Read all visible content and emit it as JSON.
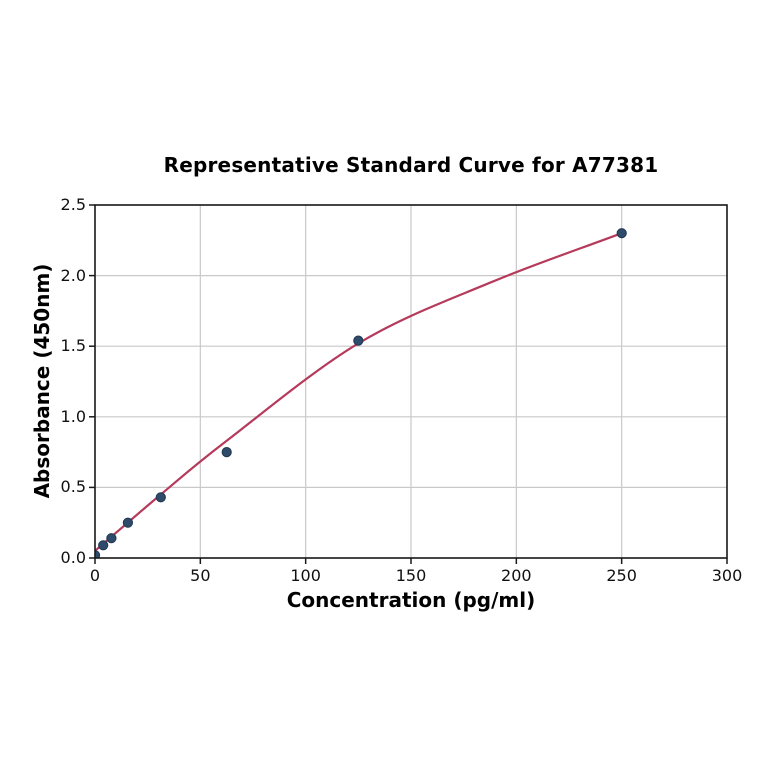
{
  "chart_data": {
    "type": "scatter",
    "title": "Representative Standard Curve for A77381",
    "xlabel": "Concentration (pg/ml)",
    "ylabel": "Absorbance (450nm)",
    "xlim": [
      0,
      300
    ],
    "ylim": [
      0,
      2.5
    ],
    "x_ticks": [
      0,
      50,
      100,
      150,
      200,
      250,
      300
    ],
    "y_ticks": [
      0,
      0.5,
      1,
      1.5,
      2,
      2.5
    ],
    "x_tick_labels": [
      "0",
      "50",
      "100",
      "150",
      "200",
      "250",
      "300"
    ],
    "y_tick_labels": [
      "0.0",
      "0.5",
      "1.0",
      "1.5",
      "2.0",
      "2.5"
    ],
    "grid": true,
    "legend": null,
    "series": [
      {
        "name": "standard-points",
        "type": "scatter",
        "points": [
          [
            0,
            0.02
          ],
          [
            3.9,
            0.09
          ],
          [
            7.8,
            0.14
          ],
          [
            15.6,
            0.25
          ],
          [
            31.25,
            0.43
          ],
          [
            62.5,
            0.75
          ],
          [
            125,
            1.54
          ],
          [
            250,
            2.3
          ]
        ]
      },
      {
        "name": "fitted-curve",
        "type": "line",
        "points": [
          [
            0,
            0.05
          ],
          [
            31.25,
            0.45
          ],
          [
            62.5,
            0.83
          ],
          [
            125,
            1.52
          ],
          [
            187.5,
            1.95
          ],
          [
            250,
            2.3
          ]
        ]
      }
    ],
    "colors": {
      "curve": "#b53a5c",
      "point_fill": "#2e4b6b",
      "point_edge": "#20364f",
      "grid": "#c9c9c9",
      "spine": "#1a1a1a",
      "text": "#000000",
      "background": "#ffffff"
    }
  }
}
